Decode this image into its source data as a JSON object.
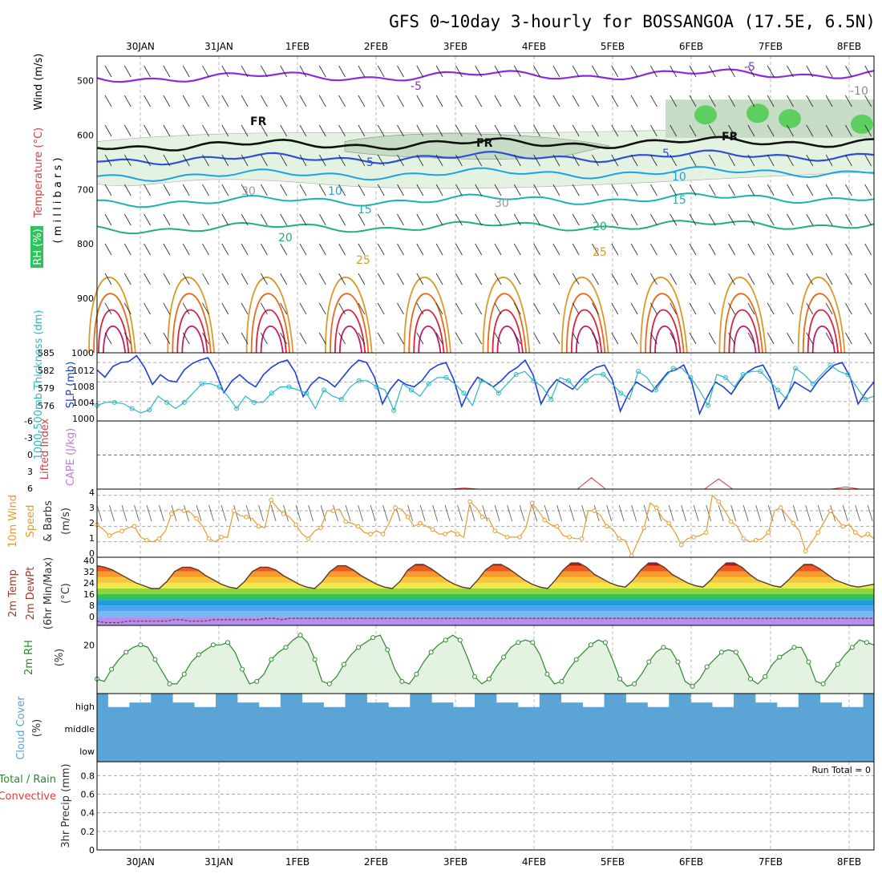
{
  "header": {
    "title": "GFS 0~10day 3-hourly for BOSSANGOA (17.5E, 6.5N)"
  },
  "dates": [
    "30JAN",
    "31JAN",
    "1FEB",
    "2FEB",
    "3FEB",
    "4FEB",
    "5FEB",
    "6FEB",
    "7FEB",
    "8FEB"
  ],
  "panels": {
    "upper_air": {
      "yticks": [
        "500",
        "600",
        "700",
        "800",
        "900",
        "1000"
      ],
      "labels": [
        {
          "t": "Wind (m/s)",
          "c": "#000"
        },
        {
          "t": "Temperature (°C)",
          "c": "#e0393e"
        },
        {
          "t": "RH (%)",
          "c": "#2ca02c"
        },
        {
          "t": "( m i l l i b a r s )",
          "c": "#000"
        }
      ],
      "contour_labels": [
        "-5",
        "-5",
        "FR",
        "FR",
        "FR",
        "5",
        "5",
        "10",
        "10",
        "15",
        "15",
        "20",
        "20",
        "25",
        "25",
        "30",
        "30",
        "-10"
      ]
    },
    "slp_thickness": {
      "yticks_left": [
        "585",
        "582",
        "579",
        "576"
      ],
      "yticks_right": [
        "1012",
        "1008",
        "1004",
        "1000"
      ],
      "left_label": "1000-500mb Thickness (dm)",
      "right_label": "SLP (mb)"
    },
    "li_cape": {
      "yticks": [
        "-6",
        "-3",
        "0",
        "3",
        "6"
      ],
      "label_li": "Lifted Index",
      "label_cape": "CAPE (J/kg)"
    },
    "wind10": {
      "yticks": [
        "4",
        "3",
        "2",
        "1",
        "0"
      ],
      "labels": [
        "10m Wind",
        "Speed",
        "& Barbs",
        "(m/s)"
      ]
    },
    "temp2m": {
      "yticks": [
        "40",
        "32",
        "24",
        "16",
        "8",
        "0"
      ],
      "labels": [
        "2m Temp",
        "2m DewPt",
        "(6hr Min/Max)",
        "(°C)"
      ]
    },
    "rh2m": {
      "yticks": [
        "20"
      ],
      "labels": [
        "2m RH",
        "(%)"
      ]
    },
    "cloud": {
      "levels": [
        "high",
        "middle",
        "low"
      ],
      "labels": [
        "Cloud Cover",
        "(%)"
      ]
    },
    "precip": {
      "yticks": [
        "0.8",
        "0.6",
        "0.4",
        "0.2",
        "0"
      ],
      "labels": [
        "Total / Rain",
        "Convective",
        "3hr Precip (mm)"
      ],
      "run_total": "Run Total = 0"
    }
  },
  "chart_data": [
    {
      "type": "area",
      "title": "3-hourly SLP / 1000-500mb Thickness",
      "series": [
        {
          "name": "SLP (mb)",
          "values": [
            1010.5,
            1009.0,
            1011.2,
            1012.0,
            1012.2,
            1013.4,
            1011.0,
            1007.5,
            1009.5,
            1008.3,
            1008.0,
            1010.5,
            1011.8,
            1012.5,
            1013.0,
            1010.0,
            1005.8,
            1008.2,
            1009.5,
            1008.0,
            1007.0,
            1009.5,
            1011.0,
            1012.0,
            1012.5,
            1010.0,
            1005.0,
            1007.5,
            1009.0,
            1008.3,
            1007.0,
            1009.0,
            1011.0,
            1012.5,
            1012.0,
            1009.0,
            1003.5,
            1006.5,
            1008.5,
            1007.5,
            1007.0,
            1008.3,
            1010.5,
            1011.5,
            1012.0,
            1008.5,
            1003.0,
            1006.5,
            1009.0,
            1008.0,
            1007.0,
            1008.3,
            1010.0,
            1011.0,
            1012.5,
            1009.5,
            1003.5,
            1006.5,
            1008.5,
            1007.5,
            1006.5,
            1008.5,
            1010.0,
            1011.0,
            1011.5,
            1008.5,
            1002.0,
            1005.5,
            1008.0,
            1007.0,
            1006.0,
            1008.0,
            1010.0,
            1010.5,
            1011.5,
            1008.0,
            1001.5,
            1005.0,
            1008.0,
            1007.0,
            1005.5,
            1008.0,
            1010.0,
            1011.0,
            1011.5,
            1008.5,
            1002.5,
            1005.0,
            1008.0,
            1007.0,
            1006.0,
            1008.3,
            1010.0,
            1011.5,
            1012.0,
            1009.0,
            1003.5,
            1006.0,
            1008.0
          ]
        },
        {
          "name": "Thickness (dm)",
          "values": [
            576.5,
            577.0,
            577.0,
            576.8,
            576.0,
            575.3,
            575.8,
            578.0,
            577.0,
            576.0,
            577.0,
            578.5,
            580.0,
            580.0,
            579.5,
            578.0,
            576.0,
            578.0,
            577.0,
            577.0,
            578.5,
            579.5,
            579.5,
            579.0,
            578.5,
            576.0,
            579.0,
            578.0,
            577.5,
            579.5,
            580.5,
            580.5,
            579.5,
            579.0,
            575.7,
            580.0,
            579.0,
            578.0,
            580.0,
            581.0,
            581.0,
            580.0,
            578.5,
            576.5,
            580.5,
            580.0,
            578.5,
            580.0,
            581.5,
            582.0,
            580.5,
            579.5,
            577.5,
            581.0,
            580.5,
            579.0,
            580.5,
            581.5,
            581.5,
            580.0,
            578.5,
            577.5,
            582.0,
            581.0,
            579.0,
            581.0,
            582.5,
            582.5,
            581.0,
            579.0,
            576.5,
            581.5,
            581.0,
            579.5,
            581.5,
            582.0,
            582.0,
            580.5,
            579.0,
            577.5,
            582.5,
            581.5,
            580.0,
            581.5,
            583.0,
            582.0,
            581.5,
            579.5,
            577.5,
            578.0
          ]
        }
      ]
    },
    {
      "type": "line",
      "title": "Lifted Index / CAPE",
      "series": [
        {
          "name": "Lifted Index",
          "values": [
            6,
            6,
            6,
            6,
            6,
            6,
            6,
            6,
            6,
            6,
            6,
            6,
            6,
            6,
            6,
            6,
            6,
            6,
            6,
            6,
            6,
            6,
            6,
            6,
            6,
            6,
            5.8,
            6,
            6,
            6,
            6,
            6,
            6,
            6,
            6,
            4.0,
            6,
            6,
            6,
            6,
            6,
            6,
            6,
            6,
            4.2,
            6,
            6,
            6,
            6,
            6,
            6,
            6,
            6,
            5.6,
            6,
            6
          ]
        }
      ]
    },
    {
      "type": "line",
      "title": "10m Wind Speed (m/s)",
      "series": [
        {
          "name": "Speed",
          "values": [
            2.1,
            1.8,
            1.4,
            1.6,
            1.7,
            1.9,
            2.0,
            1.3,
            1.1,
            1.0,
            1.2,
            1.7,
            2.8,
            3.1,
            3.0,
            2.9,
            2.5,
            2.0,
            1.2,
            1.0,
            1.3,
            1.3,
            3.0,
            2.7,
            2.6,
            2.5,
            2.0,
            1.9,
            3.7,
            3.2,
            2.8,
            2.6,
            2.1,
            1.5,
            1.2,
            1.7,
            1.9,
            3.0,
            3.0,
            3.1,
            2.3,
            2.2,
            2.0,
            1.6,
            1.5,
            1.7,
            1.5,
            2.2,
            3.2,
            3.1,
            2.6,
            2.0,
            2.2,
            2.0,
            1.8,
            1.5,
            1.5,
            1.7,
            1.5,
            1.3,
            3.6,
            3.2,
            2.6,
            2.5,
            1.7,
            1.5,
            1.3,
            1.3,
            1.3,
            1.9,
            3.5,
            3.0,
            2.4,
            2.1,
            2.0,
            1.4,
            1.3,
            1.2,
            1.2,
            3.0,
            3.0,
            2.7,
            2.0,
            1.8,
            1.2,
            1.1,
            0.1,
            1.0,
            1.9,
            3.5,
            3.2,
            2.5,
            2.2,
            1.6,
            0.8,
            1.2,
            1.3,
            1.4,
            1.6,
            4.0,
            3.6,
            3.0,
            2.3,
            2.0,
            1.2,
            1.0,
            1.1,
            1.2,
            1.6,
            3.0,
            3.2,
            2.7,
            2.2,
            1.7,
            0.4,
            1.0,
            1.6,
            2.3,
            3.0,
            2.5,
            2.0,
            2.1,
            1.6,
            1.3,
            1.5,
            1.2
          ]
        }
      ]
    },
    {
      "type": "area",
      "title": "2m Temp / DewPt",
      "series": [
        {
          "name": "2m Temp",
          "values": [
            36,
            35,
            33,
            30,
            27,
            24,
            22,
            20,
            20,
            25,
            32,
            35,
            35,
            33,
            29,
            26,
            23,
            21,
            20,
            25,
            32,
            35,
            35,
            33,
            29,
            26,
            23,
            21,
            20,
            25,
            32,
            36,
            36,
            33,
            29,
            26,
            23,
            21,
            20,
            25,
            33,
            37,
            37,
            34,
            30,
            26,
            23,
            21,
            20,
            26,
            33,
            37,
            37,
            34,
            30,
            26,
            23,
            21,
            20,
            26,
            33,
            38,
            38,
            35,
            30,
            27,
            24,
            22,
            21,
            26,
            33,
            38,
            38,
            35,
            30,
            27,
            24,
            22,
            21,
            26,
            33,
            38,
            38,
            35,
            30,
            26,
            24,
            22,
            21,
            26,
            32,
            37,
            37,
            34,
            30,
            26,
            24,
            22,
            21,
            22,
            23
          ]
        },
        {
          "name": "2m DewPt",
          "values": [
            -3,
            -4,
            -4,
            -4,
            -3,
            -3,
            -3,
            -3,
            -3,
            -3,
            -2,
            -2,
            -3,
            -3,
            -3,
            -2,
            -2,
            -2,
            -2,
            -2,
            -2,
            -2,
            -1,
            -1,
            -2,
            -1,
            -1,
            -1,
            -1,
            -1,
            -1,
            -1,
            -1,
            -1,
            -1,
            -1,
            -1,
            -1,
            -1,
            -1,
            -1,
            -1,
            -1,
            -1,
            -1,
            -1,
            -1,
            -1,
            -1,
            -1,
            -1,
            -1,
            -1,
            -1,
            -1,
            -1,
            -1,
            -1,
            -1,
            -1,
            -1,
            -1,
            -1,
            -1,
            -1,
            -1,
            -1,
            -1,
            -1,
            -1,
            -1,
            -1,
            -1,
            -1,
            -1,
            -1,
            -1,
            -1,
            -1,
            -1,
            -1,
            -1,
            -1,
            -1,
            -1,
            -1,
            -1,
            -1,
            -1,
            -1,
            -1,
            -1,
            -1,
            -1,
            -1,
            -1,
            -1,
            -1,
            -1,
            -1,
            -1,
            -1
          ]
        }
      ]
    },
    {
      "type": "line",
      "title": "2m RH (%)",
      "series": [
        {
          "name": "2m RH",
          "values": [
            6,
            5,
            10,
            14,
            17,
            19,
            20,
            19,
            14,
            9,
            4,
            4,
            8,
            13,
            16,
            18,
            20,
            20,
            21,
            17,
            10,
            4,
            5,
            8,
            14,
            17,
            19,
            22,
            24,
            21,
            14,
            5,
            4,
            7,
            12,
            16,
            19,
            21,
            23,
            24,
            18,
            10,
            5,
            4,
            8,
            13,
            17,
            20,
            22,
            24,
            22,
            15,
            7,
            4,
            6,
            11,
            15,
            19,
            21,
            22,
            21,
            16,
            8,
            4,
            5,
            10,
            14,
            17,
            20,
            22,
            21,
            14,
            6,
            3,
            4,
            8,
            13,
            17,
            19,
            18,
            13,
            5,
            3,
            6,
            11,
            14,
            17,
            18,
            17,
            12,
            6,
            4,
            7,
            12,
            15,
            17,
            19,
            19,
            13,
            5,
            4,
            8,
            12,
            16,
            19,
            22,
            21,
            20
          ]
        }
      ]
    },
    {
      "type": "bar",
      "title": "Cloud Cover (%)",
      "series": [
        {
          "name": "high",
          "values": [
            100,
            40,
            40,
            60,
            60,
            100,
            100,
            60,
            60,
            40,
            40,
            100,
            100,
            60,
            60,
            40,
            40,
            100,
            100,
            60,
            60,
            40,
            40,
            100,
            100,
            60,
            60,
            40,
            40,
            100,
            100,
            60,
            60,
            40,
            40,
            100,
            100,
            60,
            60,
            40,
            40,
            100,
            100,
            60,
            60,
            40,
            40,
            100,
            100,
            60,
            60,
            40,
            40,
            100,
            100,
            60,
            60,
            40,
            40,
            100,
            100,
            60,
            60,
            40,
            40,
            100,
            100,
            60,
            60,
            40,
            40,
            100
          ]
        },
        {
          "name": "middle",
          "values": [
            100,
            100,
            100,
            100,
            100,
            100,
            100,
            100,
            100,
            100,
            100,
            100,
            100,
            100,
            100,
            100,
            100,
            100,
            100,
            100,
            100,
            100,
            100,
            100,
            100,
            100,
            100,
            100,
            100,
            100,
            100,
            100,
            100,
            100,
            100,
            100,
            100,
            100,
            100,
            100,
            100,
            100,
            100,
            100,
            100,
            100,
            100,
            100,
            100,
            100,
            100,
            100,
            100,
            100,
            100,
            100,
            100,
            100,
            100,
            100,
            100,
            100,
            100,
            100,
            100,
            100,
            100,
            100,
            100,
            100,
            100,
            100
          ]
        },
        {
          "name": "low",
          "values": [
            100,
            100,
            100,
            100,
            100,
            100,
            100,
            100,
            100,
            100,
            100,
            100,
            100,
            100,
            100,
            100,
            100,
            100,
            100,
            100,
            100,
            100,
            100,
            100,
            100,
            100,
            100,
            100,
            100,
            100,
            100,
            100,
            100,
            100,
            100,
            100,
            100,
            100,
            100,
            100,
            100,
            100,
            100,
            100,
            100,
            100,
            100,
            100,
            100,
            100,
            100,
            100,
            100,
            100,
            100,
            100,
            100,
            100,
            100,
            100,
            100,
            100,
            100,
            100,
            100,
            100,
            100,
            100,
            100,
            100,
            100,
            100
          ]
        }
      ]
    },
    {
      "type": "bar",
      "title": "3hr Precip (mm)",
      "ylim": [
        0,
        1
      ],
      "series": [
        {
          "name": "Total / Rain",
          "values": []
        },
        {
          "name": "Convective",
          "values": []
        }
      ]
    }
  ]
}
